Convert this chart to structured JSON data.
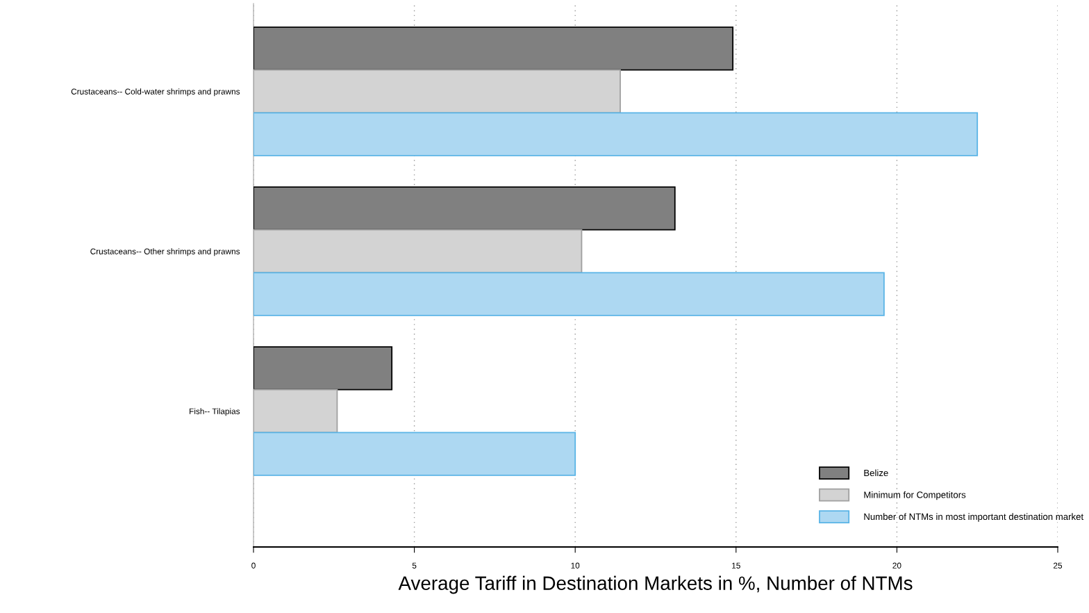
{
  "chart_data": {
    "type": "bar",
    "orientation": "horizontal",
    "xlabel": "Average Tariff in Destination Markets in %, Number of NTMs",
    "categories": [
      "Crustaceans-- Cold-water shrimps and prawns",
      "Crustaceans-- Other shrimps and prawns",
      "Fish-- Tilapias"
    ],
    "series": [
      {
        "name": "Belize",
        "color": "#808080",
        "values": [
          14.9,
          13.1,
          4.3
        ]
      },
      {
        "name": "Minimum for Competitors",
        "color": "#d3d3d3",
        "values": [
          11.4,
          10.2,
          2.6
        ]
      },
      {
        "name": "Number of NTMs in most important destination market",
        "color": "#add8f2",
        "values": [
          22.5,
          19.6,
          10
        ]
      }
    ],
    "xlim": [
      0,
      25
    ],
    "xticks": [
      0,
      5,
      10,
      15,
      20,
      25
    ],
    "grid": "x",
    "legend": "bottom right"
  }
}
